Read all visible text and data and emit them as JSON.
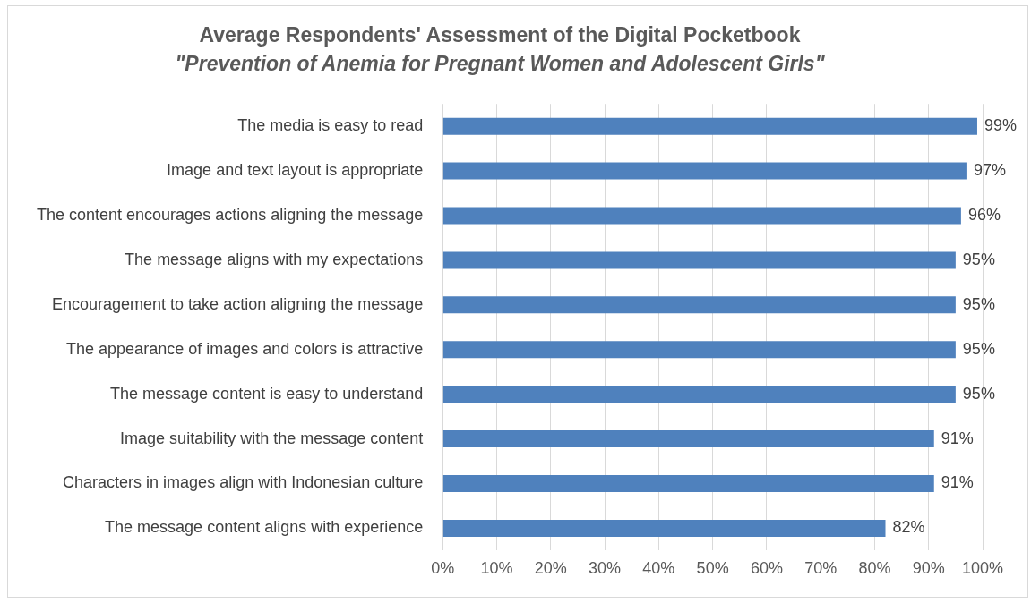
{
  "chart_data": {
    "type": "bar",
    "orientation": "horizontal",
    "title": "Average Respondents' Assessment of the Digital Pocketbook",
    "subtitle": "\"Prevention of Anemia for Pregnant Women and Adolescent Girls\"",
    "categories": [
      "The media is easy to read",
      "Image and text layout is appropriate",
      "The content encourages actions aligning the message",
      "The message aligns with my expectations",
      "Encouragement to take action aligning the message",
      "The appearance of images and colors is attractive",
      "The message content is easy to understand",
      "Image suitability with the message content",
      "Characters in images align with Indonesian culture",
      "The message content aligns with experience"
    ],
    "values": [
      99,
      97,
      96,
      95,
      95,
      95,
      95,
      91,
      91,
      82
    ],
    "value_labels": [
      "99%",
      "97%",
      "96%",
      "95%",
      "95%",
      "95%",
      "95%",
      "91%",
      "91%",
      "82%"
    ],
    "color": "#4f81bd",
    "xlim": [
      0,
      100
    ],
    "xticks": [
      {
        "value": 0,
        "label": "0%"
      },
      {
        "value": 10,
        "label": "10%"
      },
      {
        "value": 20,
        "label": "20%"
      },
      {
        "value": 30,
        "label": "30%"
      },
      {
        "value": 40,
        "label": "40%"
      },
      {
        "value": 50,
        "label": "50%"
      },
      {
        "value": 60,
        "label": "60%"
      },
      {
        "value": 70,
        "label": "70%"
      },
      {
        "value": 80,
        "label": "80%"
      },
      {
        "value": 90,
        "label": "90%"
      },
      {
        "value": 100,
        "label": "100%"
      }
    ],
    "grid": "x",
    "legend": false
  }
}
